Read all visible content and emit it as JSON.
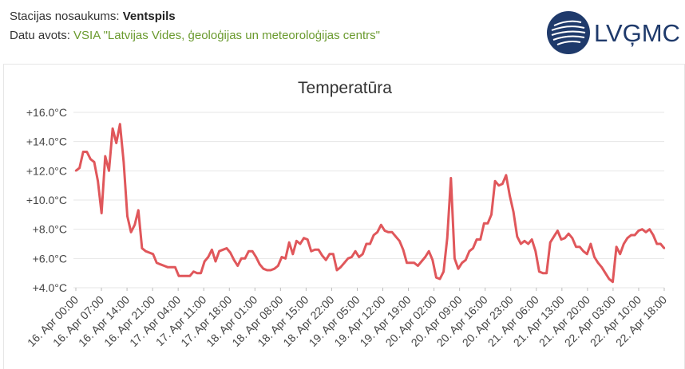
{
  "header": {
    "station_label": "Stacijas nosaukums:",
    "station_name": "Ventspils",
    "source_label": "Datu avots:",
    "source_name": "VSIA \"Latvijas Vides, ģeoloģijas un meteoroloģijas centrs\""
  },
  "logo": {
    "text": "LVĢMC"
  },
  "colors": {
    "line": "#e0575b",
    "grid": "#e6e6e6",
    "link": "#6a9a2e",
    "brand": "#1f3a6b"
  },
  "chart_data": {
    "type": "line",
    "title": "Temperatūra",
    "ylim": [
      4.0,
      16.0
    ],
    "y_ticks": [
      "+4.0°C",
      "+6.0°C",
      "+8.0°C",
      "+10.0°C",
      "+12.0°C",
      "+14.0°C",
      "+16.0°C"
    ],
    "x_ticks": [
      "16. Apr 00:00",
      "16. Apr 07:00",
      "16. Apr 14:00",
      "16. Apr 21:00",
      "17. Apr 04:00",
      "17. Apr 11:00",
      "17. Apr 18:00",
      "18. Apr 01:00",
      "18. Apr 08:00",
      "18. Apr 15:00",
      "18. Apr 22:00",
      "19. Apr 05:00",
      "19. Apr 12:00",
      "19. Apr 19:00",
      "20. Apr 02:00",
      "20. Apr 09:00",
      "20. Apr 16:00",
      "20. Apr 23:00",
      "21. Apr 06:00",
      "21. Apr 13:00",
      "21. Apr 20:00",
      "22. Apr 03:00",
      "22. Apr 10:00",
      "22. Apr 18:00"
    ],
    "grid": true,
    "series": [
      {
        "values": [
          12.0,
          12.2,
          13.3,
          13.3,
          12.8,
          12.6,
          11.3,
          9.1,
          13.0,
          12.0,
          14.9,
          13.9,
          15.2,
          12.6,
          8.9,
          7.8,
          8.3,
          9.3,
          6.7,
          6.5,
          6.4,
          6.3,
          5.7,
          5.6,
          5.5,
          5.4,
          5.4,
          5.4,
          4.8,
          4.8,
          4.8,
          4.8,
          5.1,
          5.0,
          5.0,
          5.8,
          6.1,
          6.6,
          5.8,
          6.5,
          6.6,
          6.7,
          6.4,
          5.9,
          5.5,
          6.0,
          6.0,
          6.5,
          6.5,
          6.1,
          5.6,
          5.3,
          5.2,
          5.2,
          5.3,
          5.5,
          6.1,
          6.0,
          7.1,
          6.3,
          7.2,
          7.0,
          7.4,
          7.3,
          6.5,
          6.6,
          6.6,
          6.2,
          5.9,
          6.3,
          6.3,
          5.2,
          5.4,
          5.7,
          6.0,
          6.1,
          6.5,
          6.1,
          6.3,
          7.0,
          7.0,
          7.6,
          7.8,
          8.3,
          7.9,
          7.8,
          7.8,
          7.5,
          7.2,
          6.6,
          5.7,
          5.7,
          5.7,
          5.5,
          5.8,
          6.1,
          6.5,
          5.9,
          4.7,
          4.6,
          5.1,
          7.4,
          11.5,
          6.0,
          5.3,
          5.7,
          5.9,
          6.5,
          6.7,
          7.3,
          7.3,
          8.4,
          8.4,
          9.0,
          11.3,
          11.0,
          11.1,
          11.7,
          10.3,
          9.2,
          7.5,
          7.0,
          7.2,
          7.0,
          7.3,
          6.5,
          5.1,
          5.0,
          5.0,
          7.1,
          7.5,
          7.9,
          7.3,
          7.4,
          7.7,
          7.4,
          6.8,
          6.8,
          6.5,
          6.3,
          7.0,
          6.1,
          5.7,
          5.4,
          5.0,
          4.6,
          4.4,
          6.8,
          6.3,
          7.0,
          7.4,
          7.6,
          7.6,
          7.9,
          8.0,
          7.8,
          8.0,
          7.6,
          7.0,
          7.0,
          6.7
        ]
      }
    ]
  }
}
